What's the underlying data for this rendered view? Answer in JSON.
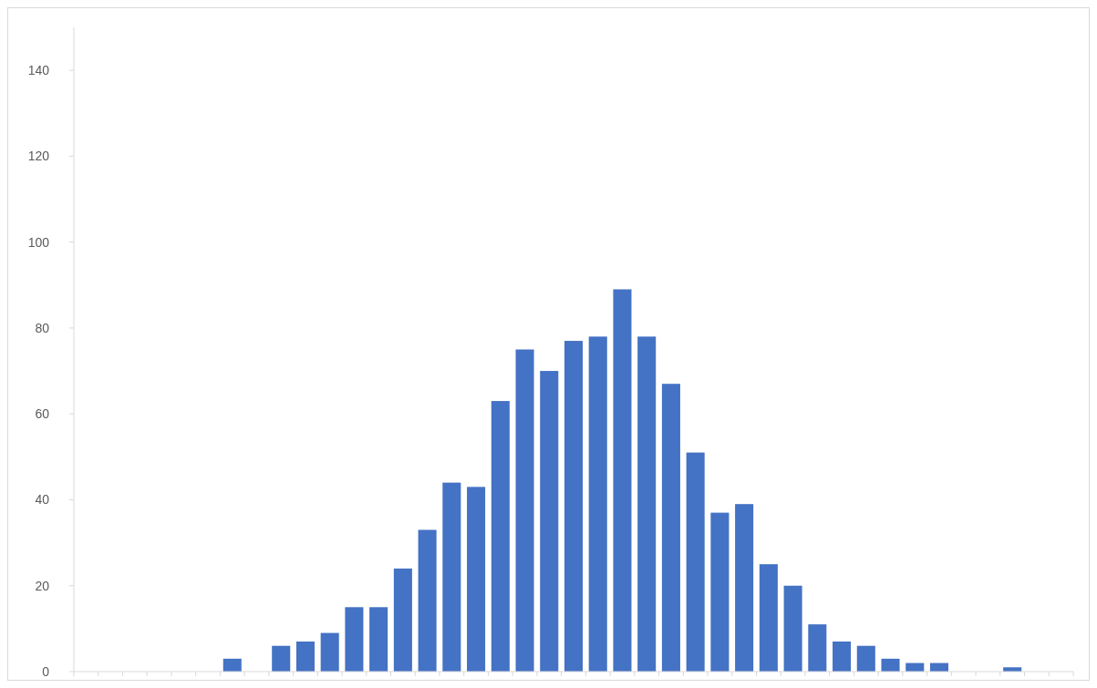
{
  "chart_data": {
    "type": "bar",
    "categories": [
      null,
      null,
      null,
      null,
      null,
      null,
      null,
      null,
      null,
      null,
      null,
      null,
      null,
      null,
      null,
      null,
      null,
      null,
      null,
      null,
      null,
      null,
      null,
      null,
      null,
      null,
      null,
      null,
      null,
      null,
      null,
      null,
      null,
      null,
      null,
      null,
      null,
      null,
      null,
      null,
      null
    ],
    "values": [
      0,
      0,
      0,
      0,
      0,
      0,
      3,
      0,
      6,
      7,
      9,
      15,
      15,
      24,
      33,
      44,
      43,
      63,
      75,
      70,
      77,
      78,
      89,
      78,
      67,
      51,
      37,
      39,
      25,
      20,
      11,
      7,
      6,
      3,
      2,
      2,
      0,
      0,
      1,
      0,
      0
    ],
    "color": "#4472c4",
    "ylim": [
      0,
      150
    ],
    "yticks": [
      0,
      20,
      40,
      60,
      80,
      100,
      120,
      140
    ],
    "grid": false
  }
}
